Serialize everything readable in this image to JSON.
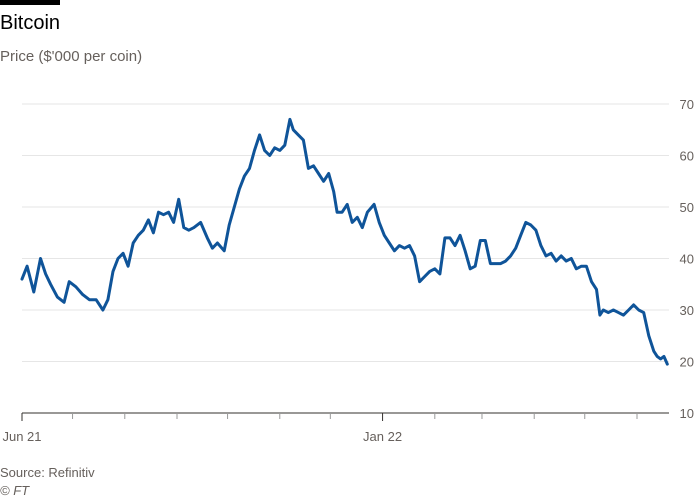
{
  "title": "Bitcoin",
  "subtitle": "Price ($'000 per coin)",
  "source": "Source: Refinitiv",
  "credit": "© FT",
  "colors": {
    "line": "#0f5499",
    "grid": "#e6e6e6",
    "axis": "#33302e",
    "text": "#66605c"
  },
  "chart_data": {
    "type": "line",
    "title": "Bitcoin",
    "ylabel": "Price ($'000 per coin)",
    "ylim": [
      10,
      70
    ],
    "yticks": [
      10,
      20,
      30,
      40,
      50,
      60,
      70
    ],
    "y_axis_side": "right",
    "grid": "horizontal",
    "xlim": [
      "2021-06-01",
      "2022-06-20"
    ],
    "x_tick_labels": [
      {
        "date": "2021-06-01",
        "label": "Jun 21"
      },
      {
        "date": "2022-01-01",
        "label": "Jan 22"
      }
    ],
    "x_minor_ticks": [
      "2021-07-01",
      "2021-08-01",
      "2021-09-01",
      "2021-10-01",
      "2021-11-01",
      "2021-12-01",
      "2022-02-01",
      "2022-03-01",
      "2022-04-01",
      "2022-05-01",
      "2022-06-01"
    ],
    "series": [
      {
        "x": [
          "2021-06-01",
          "2021-06-04",
          "2021-06-08",
          "2021-06-12",
          "2021-06-15",
          "2021-06-18",
          "2021-06-22",
          "2021-06-26",
          "2021-06-29",
          "2021-07-03",
          "2021-07-07",
          "2021-07-11",
          "2021-07-15",
          "2021-07-19",
          "2021-07-22",
          "2021-07-25",
          "2021-07-28",
          "2021-07-31",
          "2021-08-03",
          "2021-08-06",
          "2021-08-09",
          "2021-08-12",
          "2021-08-15",
          "2021-08-18",
          "2021-08-21",
          "2021-08-24",
          "2021-08-27",
          "2021-08-30",
          "2021-09-02",
          "2021-09-05",
          "2021-09-08",
          "2021-09-11",
          "2021-09-15",
          "2021-09-19",
          "2021-09-22",
          "2021-09-25",
          "2021-09-29",
          "2021-10-02",
          "2021-10-05",
          "2021-10-08",
          "2021-10-11",
          "2021-10-14",
          "2021-10-17",
          "2021-10-20",
          "2021-10-23",
          "2021-10-26",
          "2021-10-29",
          "2021-11-01",
          "2021-11-04",
          "2021-11-07",
          "2021-11-09",
          "2021-11-12",
          "2021-11-15",
          "2021-11-18",
          "2021-11-21",
          "2021-11-24",
          "2021-11-27",
          "2021-11-30",
          "2021-12-03",
          "2021-12-05",
          "2021-12-08",
          "2021-12-11",
          "2021-12-14",
          "2021-12-17",
          "2021-12-20",
          "2021-12-23",
          "2021-12-27",
          "2021-12-30",
          "2022-01-02",
          "2022-01-05",
          "2022-01-08",
          "2022-01-11",
          "2022-01-14",
          "2022-01-17",
          "2022-01-20",
          "2022-01-23",
          "2022-01-26",
          "2022-01-29",
          "2022-02-01",
          "2022-02-04",
          "2022-02-07",
          "2022-02-10",
          "2022-02-13",
          "2022-02-16",
          "2022-02-19",
          "2022-02-22",
          "2022-02-25",
          "2022-02-28",
          "2022-03-03",
          "2022-03-06",
          "2022-03-09",
          "2022-03-12",
          "2022-03-15",
          "2022-03-18",
          "2022-03-21",
          "2022-03-24",
          "2022-03-27",
          "2022-03-30",
          "2022-04-02",
          "2022-04-05",
          "2022-04-08",
          "2022-04-11",
          "2022-04-14",
          "2022-04-17",
          "2022-04-20",
          "2022-04-23",
          "2022-04-26",
          "2022-04-29",
          "2022-05-02",
          "2022-05-05",
          "2022-05-08",
          "2022-05-10",
          "2022-05-12",
          "2022-05-15",
          "2022-05-18",
          "2022-05-21",
          "2022-05-24",
          "2022-05-27",
          "2022-05-30",
          "2022-06-02",
          "2022-06-05",
          "2022-06-08",
          "2022-06-11",
          "2022-06-13",
          "2022-06-15",
          "2022-06-17",
          "2022-06-19"
        ],
        "values": [
          36,
          38.5,
          33.5,
          40,
          37,
          35,
          32.5,
          31.5,
          35.5,
          34.5,
          33,
          32,
          32,
          30,
          32,
          37.5,
          40,
          41,
          38.5,
          43,
          44.5,
          45.5,
          47.5,
          45,
          49,
          48.5,
          49,
          47,
          51.5,
          46,
          45.5,
          46,
          47,
          44,
          42,
          43,
          41.5,
          46.5,
          50,
          53.5,
          56,
          57.5,
          61,
          64,
          61,
          60,
          61.5,
          61,
          62,
          67,
          65,
          64,
          63,
          57.5,
          58,
          56.5,
          55,
          56.5,
          53,
          49,
          49,
          50.5,
          47,
          48,
          46,
          49,
          50.5,
          47,
          44.5,
          43,
          41.5,
          42.5,
          42,
          42.5,
          40.5,
          35.5,
          36.5,
          37.5,
          38,
          37,
          44,
          44,
          42.5,
          44.5,
          41.5,
          38,
          38.5,
          43.5,
          43.5,
          39,
          39,
          39,
          39.5,
          40.5,
          42,
          44.5,
          47,
          46.5,
          45.5,
          42.5,
          40.5,
          41,
          39.5,
          40.5,
          39.5,
          40,
          38,
          38.5,
          38.5,
          35.5,
          34,
          29,
          30,
          29.5,
          30,
          29.5,
          29,
          30,
          31,
          30,
          29.5,
          25,
          22,
          21,
          20.5,
          21,
          19.5
        ]
      }
    ]
  }
}
